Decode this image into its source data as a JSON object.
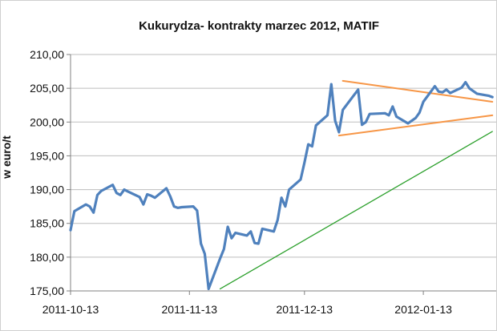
{
  "chart_data": {
    "type": "line",
    "title": "Kukurydza- kontrakty marzec 2012, MATIF",
    "ylabel": "w euro/t",
    "xlabel": "",
    "x_tick_labels": [
      "2011-10-13",
      "2011-11-13",
      "2011-12-13",
      "2012-01-13"
    ],
    "x_range": [
      "2011-10-13",
      "2012-02-01"
    ],
    "y_tick_labels": [
      "175,00",
      "180,00",
      "185,00",
      "190,00",
      "195,00",
      "200,00",
      "205,00",
      "210,00"
    ],
    "ylim": [
      175,
      210
    ],
    "grid": true,
    "legend": "none",
    "colors": {
      "price": "#4f81bd",
      "trend_channel": "#f79646",
      "support_line": "#2ca02c",
      "grid": "#bdbdbd",
      "axis": "#808080"
    },
    "series": [
      {
        "role": "price",
        "x": [
          "2011-10-13",
          "2011-10-14",
          "2011-10-17",
          "2011-10-18",
          "2011-10-19",
          "2011-10-20",
          "2011-10-21",
          "2011-10-24",
          "2011-10-25",
          "2011-10-26",
          "2011-10-27",
          "2011-10-28",
          "2011-10-31",
          "2011-11-01",
          "2011-11-02",
          "2011-11-03",
          "2011-11-04",
          "2011-11-07",
          "2011-11-08",
          "2011-11-09",
          "2011-11-10",
          "2011-11-11",
          "2011-11-14",
          "2011-11-15",
          "2011-11-16",
          "2011-11-17",
          "2011-11-18",
          "2011-11-21",
          "2011-11-22",
          "2011-11-23",
          "2011-11-24",
          "2011-11-25",
          "2011-11-28",
          "2011-11-29",
          "2011-11-30",
          "2011-12-01",
          "2011-12-02",
          "2011-12-05",
          "2011-12-06",
          "2011-12-07",
          "2011-12-08",
          "2011-12-09",
          "2011-12-12",
          "2011-12-13",
          "2011-12-14",
          "2011-12-15",
          "2011-12-16",
          "2011-12-19",
          "2011-12-20",
          "2011-12-21",
          "2011-12-22",
          "2011-12-23",
          "2011-12-27",
          "2011-12-28",
          "2011-12-29",
          "2011-12-30",
          "2012-01-03",
          "2012-01-04",
          "2012-01-05",
          "2012-01-06",
          "2012-01-09",
          "2012-01-10",
          "2012-01-11",
          "2012-01-12",
          "2012-01-13",
          "2012-01-16",
          "2012-01-17",
          "2012-01-18",
          "2012-01-19",
          "2012-01-20",
          "2012-01-23",
          "2012-01-24",
          "2012-01-25",
          "2012-01-26",
          "2012-01-27",
          "2012-01-30",
          "2012-01-31"
        ],
        "values": [
          184.0,
          186.8,
          187.8,
          187.5,
          186.6,
          189.2,
          189.8,
          190.7,
          189.5,
          189.2,
          190.0,
          189.7,
          188.9,
          187.8,
          189.3,
          189.1,
          188.8,
          190.2,
          189.0,
          187.5,
          187.3,
          187.4,
          187.5,
          186.9,
          182.0,
          180.5,
          175.3,
          179.8,
          181.2,
          184.5,
          182.8,
          183.6,
          183.2,
          183.8,
          182.1,
          182.0,
          184.2,
          183.8,
          185.5,
          188.8,
          187.5,
          190.0,
          191.5,
          194.0,
          196.7,
          196.4,
          199.5,
          201.0,
          205.6,
          200.2,
          198.5,
          201.8,
          204.8,
          199.6,
          200.0,
          201.2,
          201.3,
          201.0,
          202.3,
          200.8,
          199.8,
          200.2,
          200.6,
          201.4,
          203.0,
          205.3,
          204.5,
          204.4,
          204.8,
          204.3,
          205.1,
          205.9,
          205.0,
          204.6,
          204.2,
          203.9,
          203.7
        ]
      },
      {
        "role": "upper_channel",
        "x": [
          "2011-12-23",
          "2012-01-31"
        ],
        "values": [
          206.1,
          203.0
        ]
      },
      {
        "role": "lower_channel",
        "x": [
          "2011-12-22",
          "2012-01-31"
        ],
        "values": [
          198.0,
          201.0
        ]
      },
      {
        "role": "support_line",
        "x": [
          "2011-11-21",
          "2012-01-31"
        ],
        "values": [
          175.3,
          198.6
        ]
      }
    ]
  }
}
